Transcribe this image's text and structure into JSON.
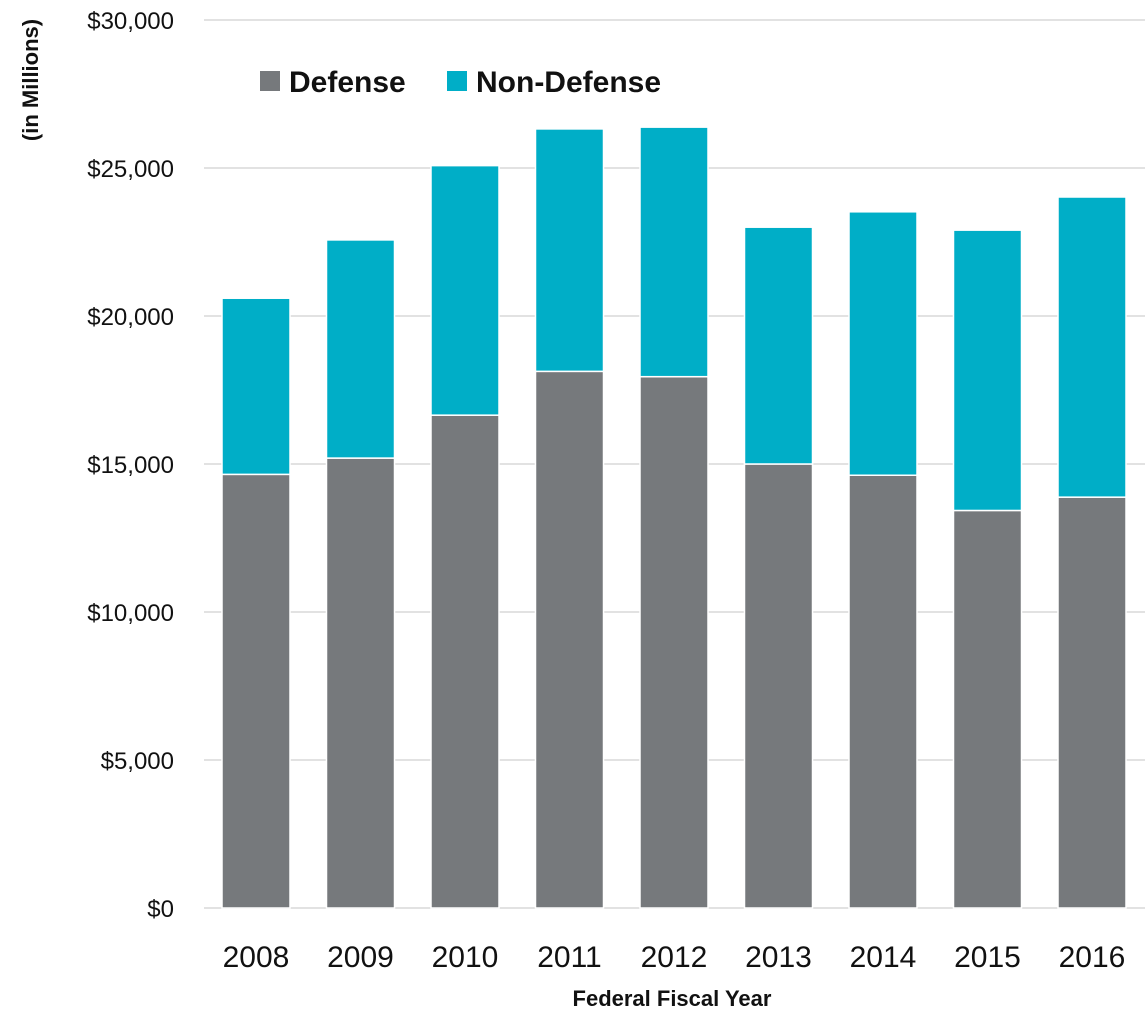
{
  "chart_data": {
    "type": "bar",
    "stacked": true,
    "categories": [
      "2008",
      "2009",
      "2010",
      "2011",
      "2012",
      "2013",
      "2014",
      "2015",
      "2016"
    ],
    "series": [
      {
        "name": "Defense",
        "color": "#76797c",
        "values": [
          14650,
          15200,
          16650,
          18130,
          17950,
          15000,
          14620,
          13430,
          13880
        ]
      },
      {
        "name": "Non-Defense",
        "color": "#00aec7",
        "values": [
          5950,
          7370,
          8430,
          8190,
          8430,
          8000,
          8900,
          9470,
          10140
        ]
      }
    ],
    "xlabel": "Federal Fiscal Year",
    "ylabel": "(in Millions)",
    "ylim": [
      0,
      30000
    ],
    "yticks": [
      0,
      5000,
      10000,
      15000,
      20000,
      25000,
      30000
    ],
    "ytick_labels": [
      "$0",
      "$5,000",
      "$10,000",
      "$15,000",
      "$20,000",
      "$25,000",
      "$30,000"
    ],
    "grid": true,
    "legend_position": "top-left"
  }
}
